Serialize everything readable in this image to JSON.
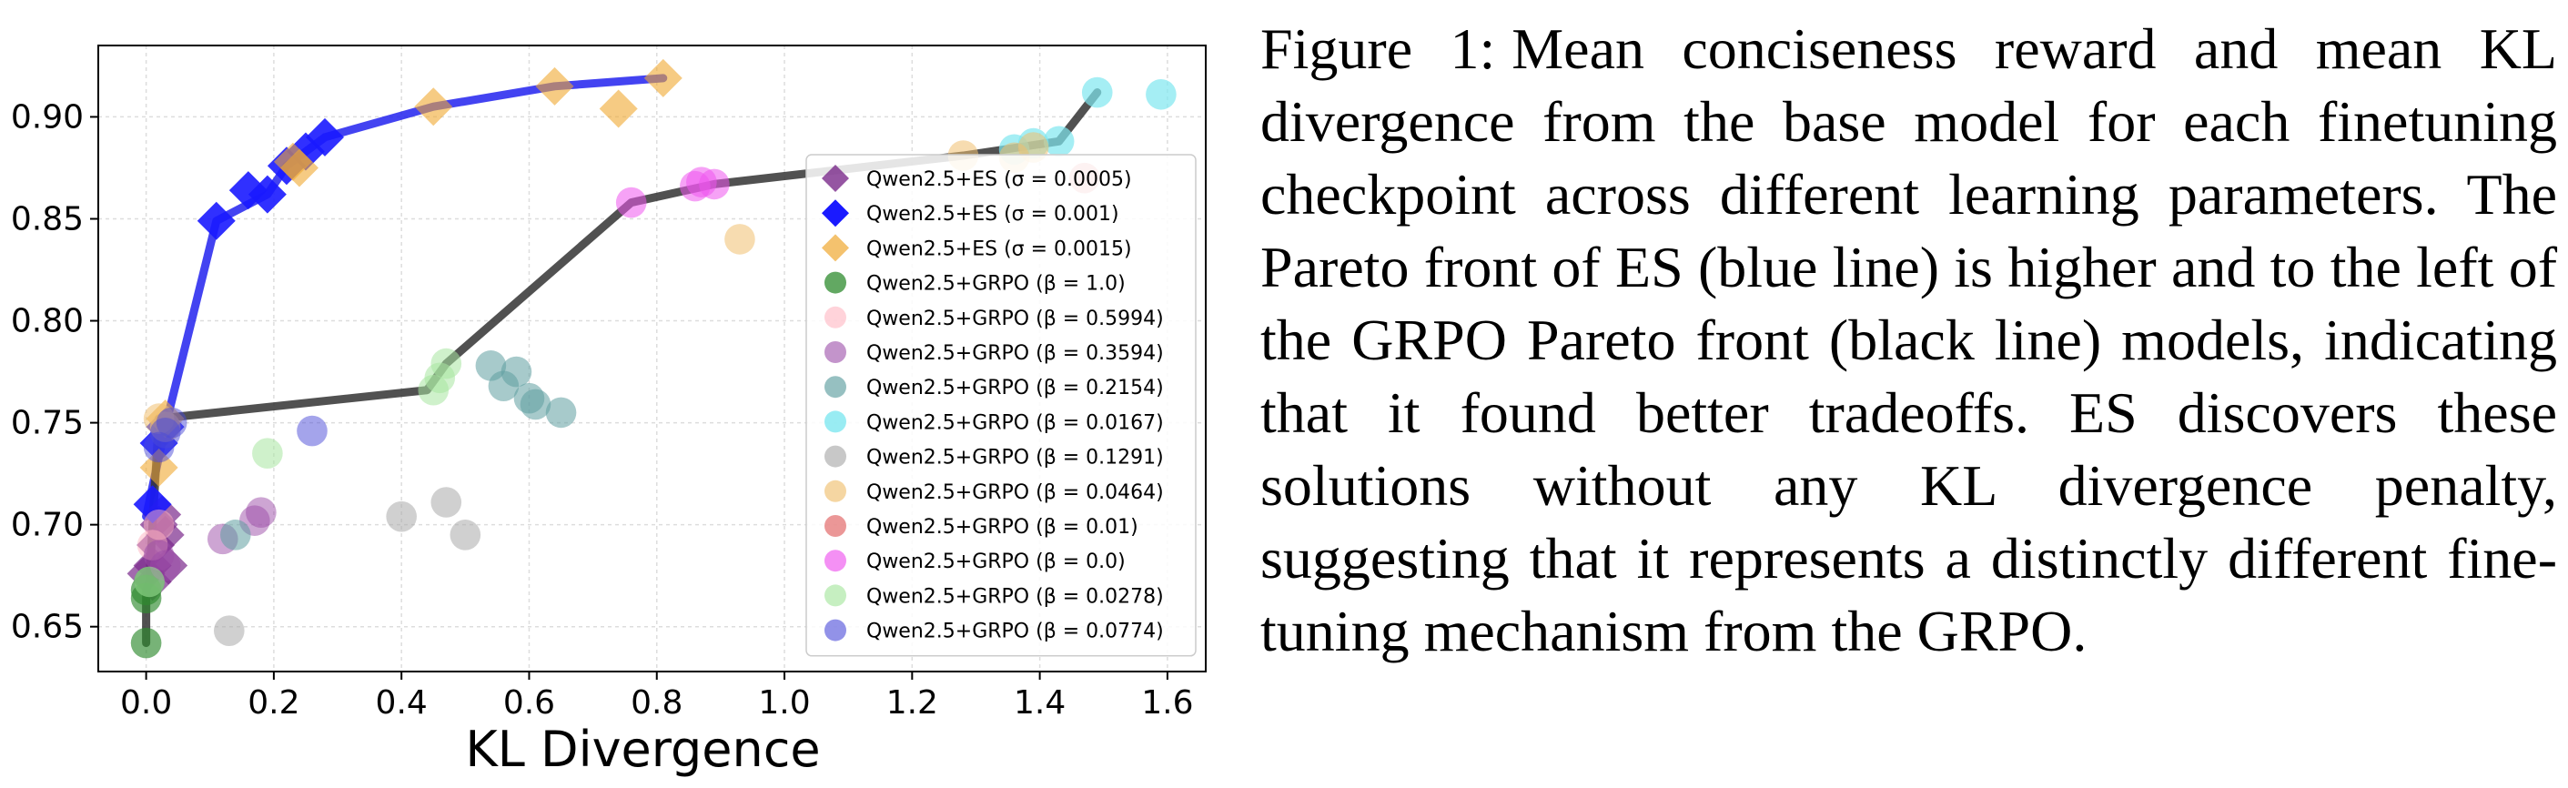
{
  "caption": {
    "label": "Figure 1:",
    "text": "Mean conciseness reward and mean KL divergence from the base model for each fine­tuning checkpoint across different learning pa­rameters. The Pareto front of ES (blue line) is higher and to the left of the GRPO Pareto front (black line) models, indicating that it found bet­ter tradeoffs. ES discovers these solutions with­out any KL divergence penalty, suggesting that it represents a distinctly different fine-tuning mech­anism from the GRPO."
  },
  "chart_data": {
    "type": "scatter",
    "xlabel": "KL Divergence",
    "ylabel": "",
    "xlim": [
      -0.075,
      1.66
    ],
    "ylim": [
      0.628,
      0.935
    ],
    "xticks": [
      "0.0",
      "0.2",
      "0.4",
      "0.6",
      "0.8",
      "1.0",
      "1.2",
      "1.4",
      "1.6"
    ],
    "xtick_values": [
      0.0,
      0.2,
      0.4,
      0.6,
      0.8,
      1.0,
      1.2,
      1.4,
      1.6
    ],
    "yticks": [
      "0.65",
      "0.70",
      "0.75",
      "0.80",
      "0.85",
      "0.90"
    ],
    "ytick_values": [
      0.65,
      0.7,
      0.75,
      0.8,
      0.85,
      0.9
    ],
    "grid": true,
    "legend_position": "right",
    "series": [
      {
        "label": "Qwen2.5+ES",
        "param": "(σ = 0.0005)",
        "color": "#7b2a8b",
        "marker": "diamond",
        "alpha": 0.7,
        "points": [
          [
            0.0,
            0.676
          ],
          [
            0.01,
            0.68
          ],
          [
            0.015,
            0.69
          ],
          [
            0.02,
            0.7
          ],
          [
            0.025,
            0.705
          ],
          [
            0.03,
            0.695
          ],
          [
            0.035,
            0.68
          ],
          [
            0.01,
            0.672
          ]
        ]
      },
      {
        "label": "Qwen2.5+ES",
        "param": "(σ = 0.001)",
        "color": "#1a1aff",
        "marker": "diamond",
        "alpha": 0.9,
        "points": [
          [
            0.01,
            0.71
          ],
          [
            0.02,
            0.74
          ],
          [
            0.03,
            0.748
          ],
          [
            0.11,
            0.849
          ],
          [
            0.19,
            0.862
          ],
          [
            0.22,
            0.876
          ],
          [
            0.25,
            0.883
          ],
          [
            0.28,
            0.89
          ],
          [
            0.16,
            0.864
          ]
        ]
      },
      {
        "label": "Qwen2.5+ES",
        "param": "(σ = 0.0015)",
        "color": "#f0a830",
        "marker": "diamond",
        "alpha": 0.6,
        "points": [
          [
            0.23,
            0.878
          ],
          [
            0.24,
            0.875
          ],
          [
            0.45,
            0.905
          ],
          [
            0.64,
            0.915
          ],
          [
            0.74,
            0.904
          ],
          [
            0.81,
            0.919
          ],
          [
            0.02,
            0.728
          ],
          [
            0.03,
            0.752
          ]
        ]
      },
      {
        "label": "Qwen2.5+GRPO",
        "param": "(β = 1.0)",
        "color": "#2e8b2e",
        "marker": "circle",
        "alpha": 0.65,
        "points": [
          [
            0.0,
            0.642
          ],
          [
            0.0,
            0.668
          ],
          [
            0.0,
            0.664
          ],
          [
            0.005,
            0.672
          ]
        ]
      },
      {
        "label": "Qwen2.5+GRPO",
        "param": "(β = 0.5994)",
        "color": "#ffb6c1",
        "marker": "circle",
        "alpha": 0.5,
        "points": [
          [
            0.01,
            0.69
          ],
          [
            0.02,
            0.7
          ]
        ]
      },
      {
        "label": "Qwen2.5+GRPO",
        "param": "(β = 0.3594)",
        "color": "#9b4ca8",
        "marker": "circle",
        "alpha": 0.5,
        "points": [
          [
            0.12,
            0.693
          ],
          [
            0.17,
            0.702
          ],
          [
            0.18,
            0.706
          ],
          [
            0.03,
            0.68
          ],
          [
            0.02,
            0.685
          ]
        ]
      },
      {
        "label": "Qwen2.5+GRPO",
        "param": "(β = 0.2154)",
        "color": "#5e9ea0",
        "marker": "circle",
        "alpha": 0.55,
        "points": [
          [
            0.54,
            0.778
          ],
          [
            0.56,
            0.768
          ],
          [
            0.58,
            0.775
          ],
          [
            0.6,
            0.762
          ],
          [
            0.61,
            0.759
          ],
          [
            0.65,
            0.755
          ],
          [
            0.14,
            0.695
          ]
        ]
      },
      {
        "label": "Qwen2.5+GRPO",
        "param": "(β = 0.0167)",
        "color": "#7fe7f0",
        "marker": "circle",
        "alpha": 0.7,
        "points": [
          [
            1.36,
            0.884
          ],
          [
            1.39,
            0.887
          ],
          [
            1.49,
            0.912
          ],
          [
            1.59,
            0.911
          ],
          [
            1.43,
            0.888
          ]
        ]
      },
      {
        "label": "Qwen2.5+GRPO",
        "param": "(β = 0.1291)",
        "color": "#aaaaaa",
        "marker": "circle",
        "alpha": 0.55,
        "points": [
          [
            0.4,
            0.704
          ],
          [
            0.47,
            0.711
          ],
          [
            0.5,
            0.695
          ],
          [
            0.13,
            0.648
          ]
        ]
      },
      {
        "label": "Qwen2.5+GRPO",
        "param": "(β = 0.0464)",
        "color": "#f0c070",
        "marker": "circle",
        "alpha": 0.55,
        "points": [
          [
            1.28,
            0.881
          ],
          [
            1.36,
            0.88
          ],
          [
            1.39,
            0.885
          ],
          [
            0.93,
            0.84
          ],
          [
            0.02,
            0.752
          ],
          [
            0.03,
            0.748
          ]
        ]
      },
      {
        "label": "Qwen2.5+GRPO",
        "param": "(β = 0.01)",
        "color": "#e06060",
        "marker": "circle",
        "alpha": 0.55,
        "points": [
          [
            1.47,
            0.87
          ]
        ]
      },
      {
        "label": "Qwen2.5+GRPO",
        "param": "(β = 0.0)",
        "color": "#ee55ee",
        "marker": "circle",
        "alpha": 0.55,
        "points": [
          [
            0.76,
            0.858
          ],
          [
            0.86,
            0.866
          ],
          [
            0.87,
            0.868
          ],
          [
            0.89,
            0.867
          ]
        ]
      },
      {
        "label": "Qwen2.5+GRPO",
        "param": "(β = 0.0278)",
        "color": "#a8e6a0",
        "marker": "circle",
        "alpha": 0.55,
        "points": [
          [
            0.45,
            0.766
          ],
          [
            0.46,
            0.772
          ],
          [
            0.47,
            0.779
          ],
          [
            0.19,
            0.735
          ],
          [
            0.005,
            0.672
          ]
        ]
      },
      {
        "label": "Qwen2.5+GRPO",
        "param": "(β = 0.0774)",
        "color": "#4a4ad8",
        "marker": "circle",
        "alpha": 0.5,
        "points": [
          [
            0.26,
            0.746
          ],
          [
            0.02,
            0.738
          ],
          [
            0.03,
            0.745
          ],
          [
            0.04,
            0.75
          ]
        ]
      }
    ],
    "pareto_fronts": [
      {
        "name": "ES Pareto front",
        "color": "#2222ee",
        "points": [
          [
            0.0,
            0.704
          ],
          [
            0.03,
            0.748
          ],
          [
            0.11,
            0.849
          ],
          [
            0.19,
            0.862
          ],
          [
            0.22,
            0.876
          ],
          [
            0.28,
            0.89
          ],
          [
            0.45,
            0.905
          ],
          [
            0.64,
            0.915
          ],
          [
            0.81,
            0.919
          ]
        ]
      },
      {
        "name": "GRPO Pareto front",
        "color": "#333333",
        "points": [
          [
            0.0,
            0.642
          ],
          [
            0.0,
            0.668
          ],
          [
            0.005,
            0.672
          ],
          [
            0.01,
            0.7
          ],
          [
            0.02,
            0.752
          ],
          [
            0.44,
            0.766
          ],
          [
            0.47,
            0.779
          ],
          [
            0.76,
            0.858
          ],
          [
            0.89,
            0.867
          ],
          [
            1.28,
            0.881
          ],
          [
            1.43,
            0.888
          ],
          [
            1.49,
            0.912
          ]
        ]
      }
    ]
  }
}
